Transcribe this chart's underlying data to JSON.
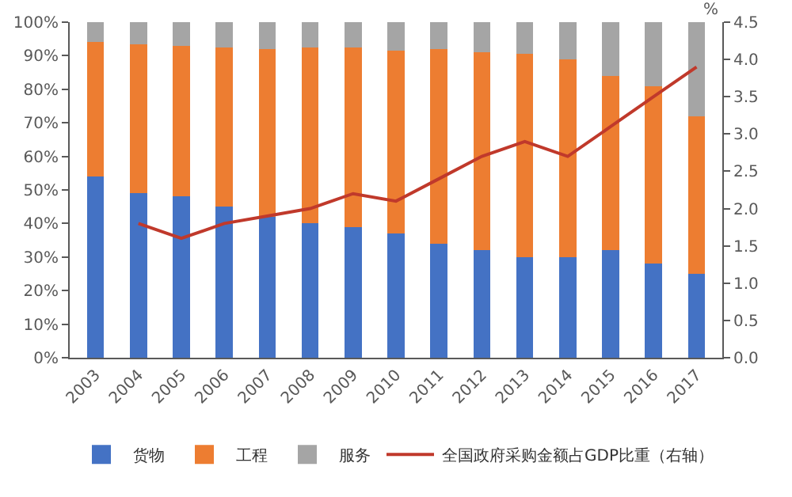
{
  "chart_data": {
    "type": "bar",
    "stacked": true,
    "categories": [
      "2003",
      "2004",
      "2005",
      "2006",
      "2007",
      "2008",
      "2009",
      "2010",
      "2011",
      "2012",
      "2013",
      "2014",
      "2015",
      "2016",
      "2017"
    ],
    "series": [
      {
        "name": "货物",
        "color": "#4472c4",
        "values": [
          54,
          49,
          48,
          45,
          42,
          40,
          39,
          37,
          34,
          32,
          30,
          30,
          32,
          28,
          25
        ]
      },
      {
        "name": "工程",
        "color": "#ed7d31",
        "values": [
          40,
          44.5,
          45,
          47.5,
          50,
          52.5,
          53.5,
          54.5,
          58,
          59,
          60.5,
          59,
          52,
          53,
          47
        ]
      },
      {
        "name": "服务",
        "color": "#a5a5a5",
        "values": [
          6,
          6.5,
          7,
          7.5,
          8,
          7.5,
          7.5,
          8.5,
          8,
          9,
          9.5,
          11,
          16,
          19,
          28
        ]
      },
      {
        "name": "全国政府采购金额占GDP比重（右轴）",
        "type": "line",
        "axis": "y2",
        "color": "#c0392b",
        "values": [
          null,
          1.8,
          1.6,
          1.8,
          1.9,
          2.0,
          2.2,
          2.1,
          2.4,
          2.7,
          2.9,
          2.7,
          3.1,
          3.5,
          3.9
        ]
      }
    ],
    "ylim": [
      0,
      100
    ],
    "yticks": [
      {
        "value": 0,
        "label": "0%"
      },
      {
        "value": 10,
        "label": "10%"
      },
      {
        "value": 20,
        "label": "20%"
      },
      {
        "value": 30,
        "label": "30%"
      },
      {
        "value": 40,
        "label": "40%"
      },
      {
        "value": 50,
        "label": "50%"
      },
      {
        "value": 60,
        "label": "60%"
      },
      {
        "value": 70,
        "label": "70%"
      },
      {
        "value": 80,
        "label": "80%"
      },
      {
        "value": 90,
        "label": "90%"
      },
      {
        "value": 100,
        "label": "100%"
      }
    ],
    "y2label": "%",
    "y2lim": [
      0,
      4.5
    ],
    "y2ticks": [
      {
        "value": 0,
        "label": "0.0"
      },
      {
        "value": 0.5,
        "label": "0.5"
      },
      {
        "value": 1,
        "label": "1.0"
      },
      {
        "value": 1.5,
        "label": "1.5"
      },
      {
        "value": 2,
        "label": "2.0"
      },
      {
        "value": 2.5,
        "label": "2.5"
      },
      {
        "value": 3,
        "label": "3.0"
      },
      {
        "value": 3.5,
        "label": "3.5"
      },
      {
        "value": 4,
        "label": "4.0"
      },
      {
        "value": 4.5,
        "label": "4.5"
      }
    ],
    "grid": false,
    "legend": "bottom",
    "marker": "none",
    "line_style": "solid"
  }
}
